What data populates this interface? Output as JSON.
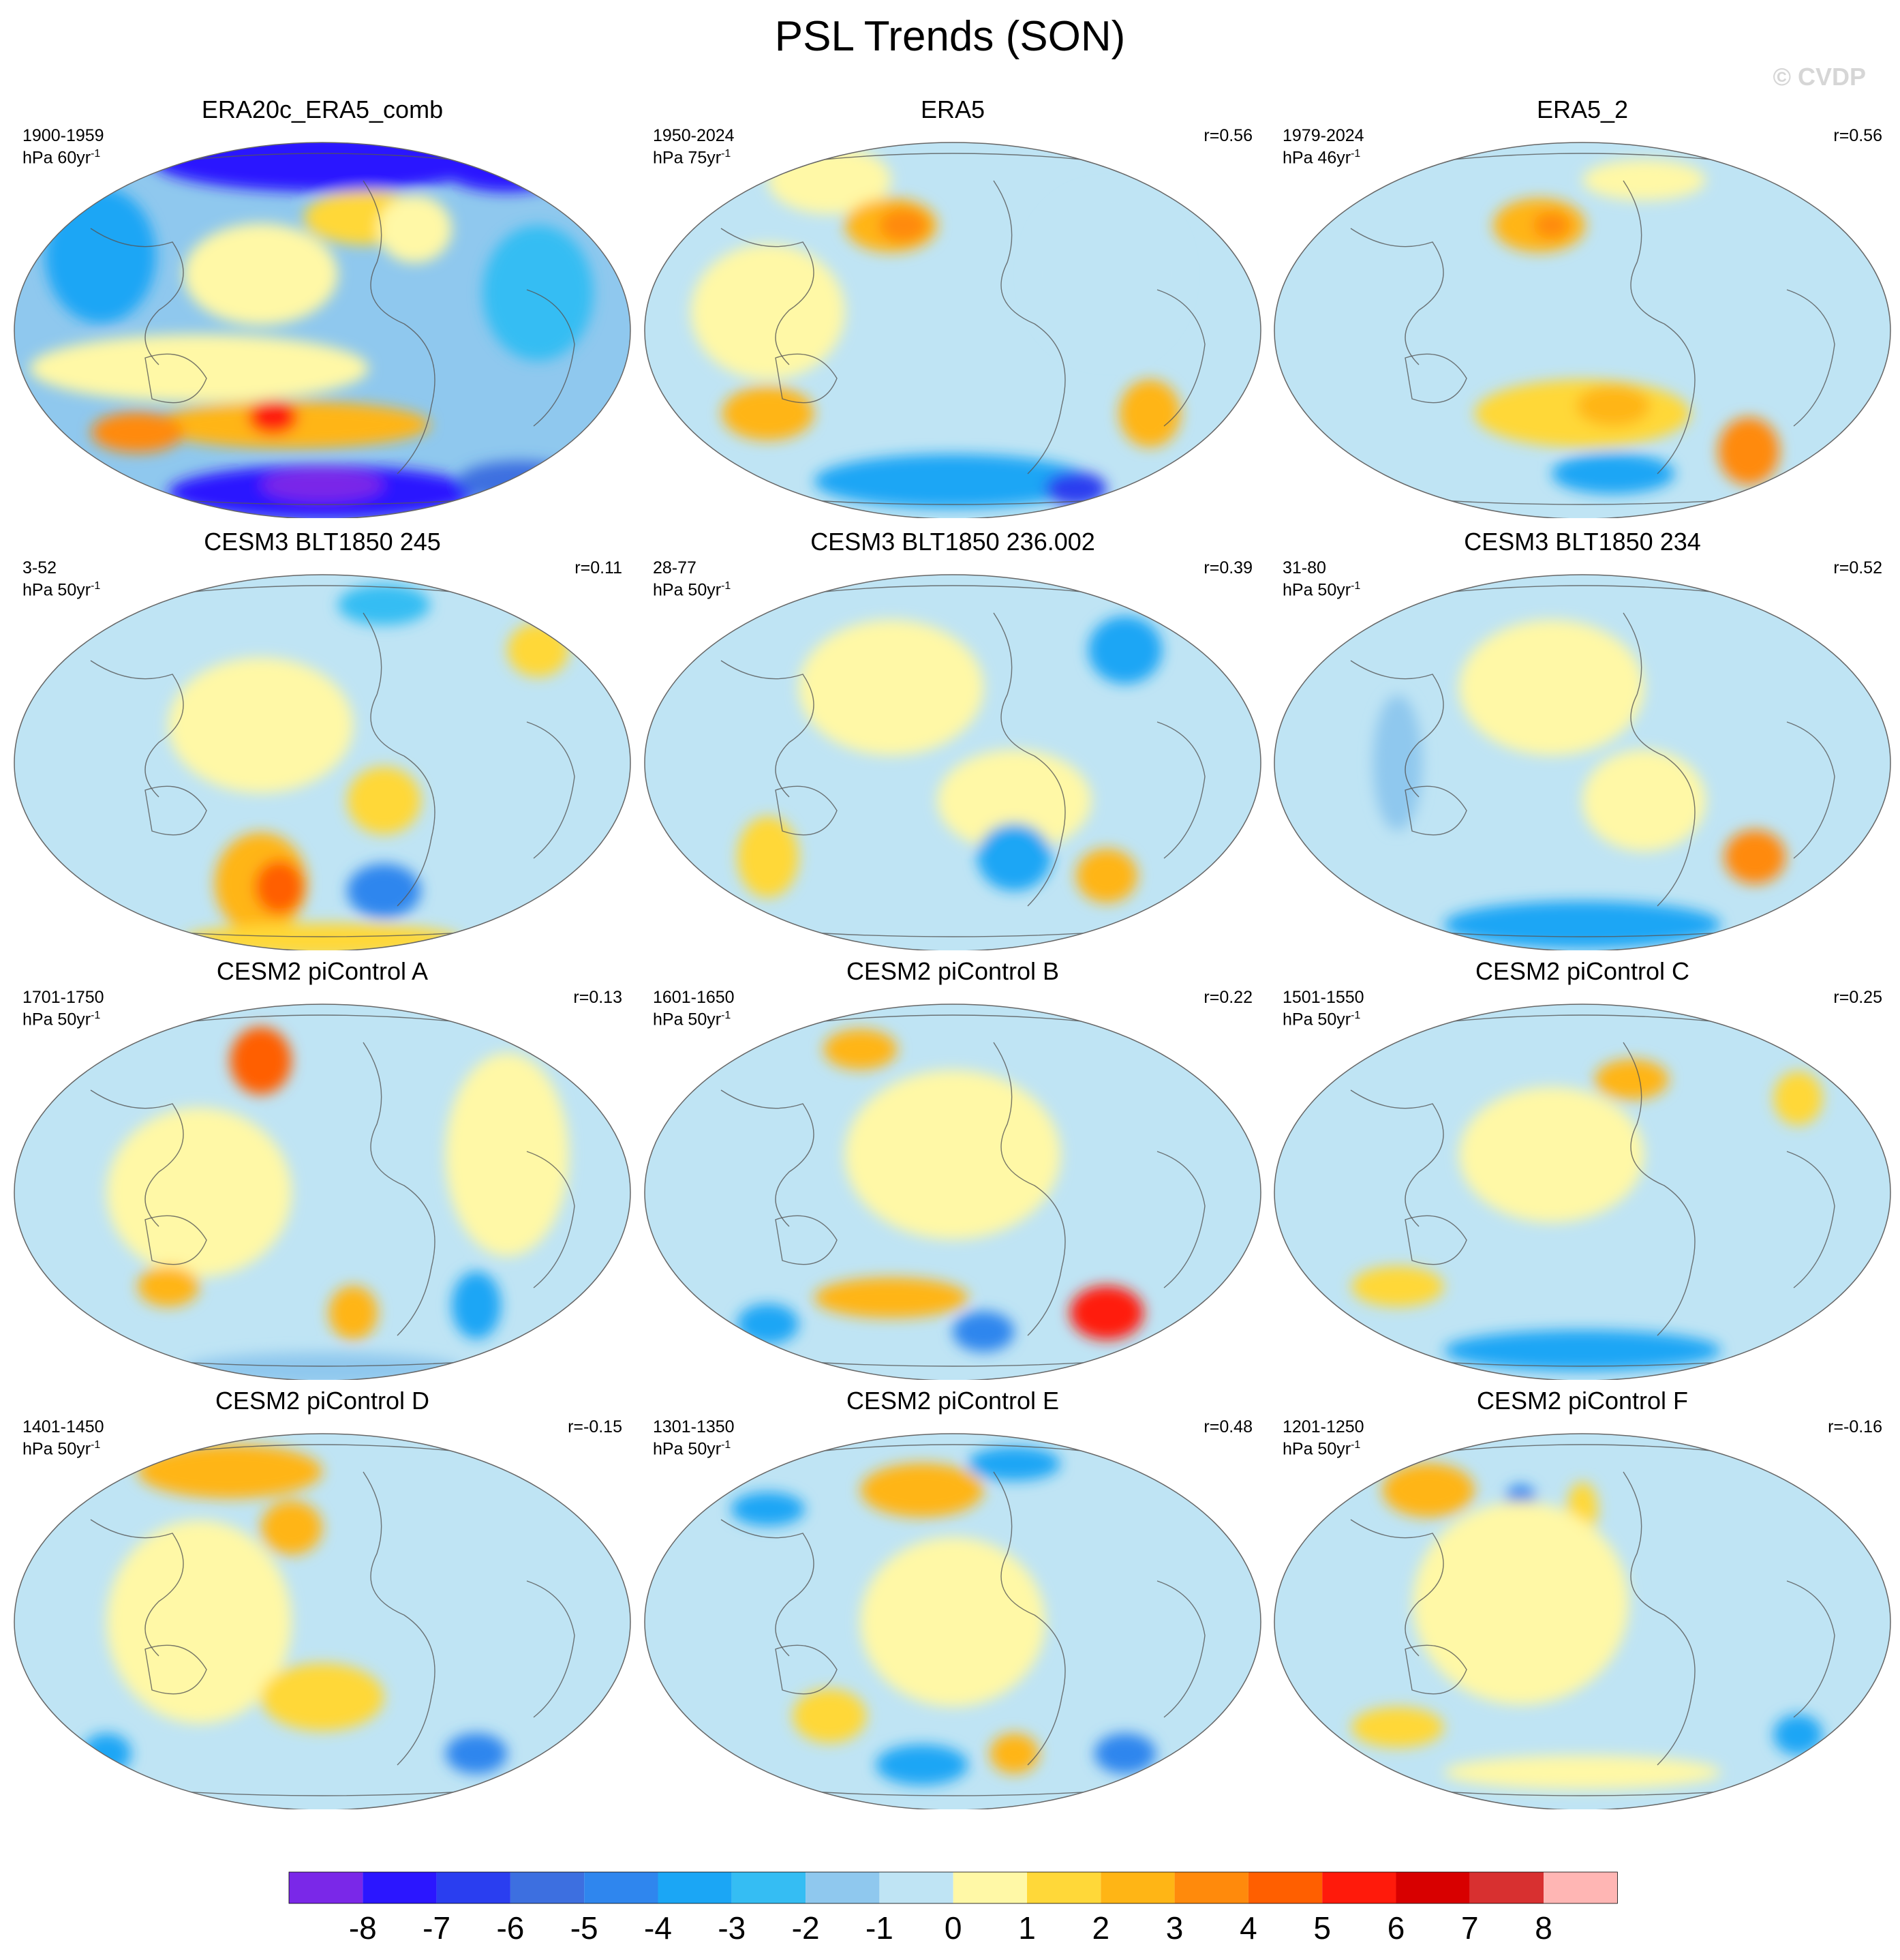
{
  "title": "PSL Trends (SON)",
  "watermark": "© CVDP",
  "colors": {
    "palette": [
      "#7a28e8",
      "#2b16ff",
      "#2a3ef0",
      "#3d6fe0",
      "#2f86ee",
      "#1ba6f5",
      "#35bdf3",
      "#8fc8ee",
      "#bfe4f4",
      "#fff8a6",
      "#ffd839",
      "#ffb515",
      "#ff8a0c",
      "#ff5f00",
      "#ff1a0b",
      "#d80000",
      "#d83030",
      "#ffb6b4"
    ],
    "coast": "#555555"
  },
  "panels": [
    {
      "id": "era20c",
      "title": "ERA20c_ERA5_comb",
      "period": "1900-1959",
      "units_base": "hPa 60yr",
      "units_exp": "-1",
      "corr": "",
      "base": 7,
      "blobs": [
        [
          0.5,
          0.05,
          0.55,
          0.09,
          1
        ],
        [
          0.8,
          0.06,
          0.22,
          0.08,
          1
        ],
        [
          0.14,
          0.3,
          0.18,
          0.2,
          5
        ],
        [
          0.85,
          0.4,
          0.18,
          0.2,
          6
        ],
        [
          0.4,
          0.35,
          0.25,
          0.15,
          9
        ],
        [
          0.57,
          0.2,
          0.2,
          0.08,
          10
        ],
        [
          0.65,
          0.23,
          0.12,
          0.1,
          9
        ],
        [
          0.3,
          0.6,
          0.55,
          0.1,
          9
        ],
        [
          0.45,
          0.75,
          0.45,
          0.07,
          11
        ],
        [
          0.2,
          0.77,
          0.15,
          0.06,
          12
        ],
        [
          0.42,
          0.73,
          0.08,
          0.05,
          14
        ],
        [
          0.5,
          0.93,
          0.5,
          0.08,
          1
        ],
        [
          0.5,
          0.91,
          0.2,
          0.05,
          0
        ],
        [
          0.82,
          0.9,
          0.2,
          0.06,
          3
        ]
      ]
    },
    {
      "id": "era5",
      "title": "ERA5",
      "period": "1950-2024",
      "units_base": "hPa 75yr",
      "units_exp": "-1",
      "corr": "r=0.56",
      "base": 8,
      "blobs": [
        [
          0.3,
          0.1,
          0.2,
          0.1,
          9
        ],
        [
          0.4,
          0.22,
          0.15,
          0.08,
          11
        ],
        [
          0.42,
          0.22,
          0.08,
          0.05,
          12
        ],
        [
          0.2,
          0.45,
          0.25,
          0.2,
          9
        ],
        [
          0.75,
          0.35,
          0.25,
          0.25,
          8
        ],
        [
          0.2,
          0.72,
          0.15,
          0.08,
          11
        ],
        [
          0.82,
          0.72,
          0.1,
          0.1,
          11
        ],
        [
          0.5,
          0.9,
          0.45,
          0.08,
          5
        ],
        [
          0.7,
          0.92,
          0.1,
          0.05,
          2
        ]
      ]
    },
    {
      "id": "era5_2",
      "title": "ERA5_2",
      "period": "1979-2024",
      "units_base": "hPa 46yr",
      "units_exp": "-1",
      "corr": "r=0.56",
      "base": 8,
      "blobs": [
        [
          0.43,
          0.22,
          0.15,
          0.08,
          11
        ],
        [
          0.45,
          0.22,
          0.06,
          0.04,
          12
        ],
        [
          0.6,
          0.1,
          0.2,
          0.06,
          9
        ],
        [
          0.5,
          0.72,
          0.35,
          0.1,
          10
        ],
        [
          0.55,
          0.7,
          0.12,
          0.06,
          11
        ],
        [
          0.77,
          0.82,
          0.1,
          0.1,
          12
        ],
        [
          0.55,
          0.88,
          0.2,
          0.06,
          5
        ]
      ]
    },
    {
      "id": "cesm3_245",
      "title": "CESM3 BLT1850 245",
      "period": "3-52",
      "units_base": "hPa 50yr",
      "units_exp": "-1",
      "corr": "r=0.11",
      "base": 8,
      "blobs": [
        [
          0.6,
          0.08,
          0.15,
          0.06,
          6
        ],
        [
          0.4,
          0.4,
          0.3,
          0.2,
          9
        ],
        [
          0.6,
          0.6,
          0.12,
          0.1,
          10
        ],
        [
          0.4,
          0.82,
          0.15,
          0.15,
          11
        ],
        [
          0.43,
          0.83,
          0.08,
          0.08,
          13
        ],
        [
          0.6,
          0.84,
          0.12,
          0.08,
          4
        ],
        [
          0.85,
          0.2,
          0.1,
          0.08,
          10
        ],
        [
          0.5,
          0.97,
          0.45,
          0.05,
          10
        ]
      ]
    },
    {
      "id": "cesm3_236",
      "title": "CESM3 BLT1850 236.002",
      "period": "28-77",
      "units_base": "hPa 50yr",
      "units_exp": "-1",
      "corr": "r=0.39",
      "base": 8,
      "blobs": [
        [
          0.4,
          0.3,
          0.3,
          0.2,
          9
        ],
        [
          0.6,
          0.6,
          0.25,
          0.15,
          9
        ],
        [
          0.2,
          0.75,
          0.1,
          0.12,
          10
        ],
        [
          0.6,
          0.75,
          0.12,
          0.1,
          5
        ],
        [
          0.75,
          0.8,
          0.1,
          0.08,
          11
        ],
        [
          0.78,
          0.2,
          0.12,
          0.1,
          5
        ]
      ]
    },
    {
      "id": "cesm3_234",
      "title": "CESM3 BLT1850 234",
      "period": "31-80",
      "units_base": "hPa 50yr",
      "units_exp": "-1",
      "corr": "r=0.52",
      "base": 8,
      "blobs": [
        [
          0.45,
          0.3,
          0.3,
          0.2,
          9
        ],
        [
          0.6,
          0.6,
          0.2,
          0.15,
          9
        ],
        [
          0.78,
          0.75,
          0.1,
          0.08,
          12
        ],
        [
          0.5,
          0.93,
          0.45,
          0.07,
          5
        ],
        [
          0.2,
          0.5,
          0.08,
          0.2,
          7
        ]
      ]
    },
    {
      "id": "cesm2_a",
      "title": "CESM2 piControl A",
      "period": "1701-1750",
      "units_base": "hPa 50yr",
      "units_exp": "-1",
      "corr": "r=0.13",
      "base": 8,
      "blobs": [
        [
          0.4,
          0.15,
          0.1,
          0.1,
          13
        ],
        [
          0.3,
          0.5,
          0.3,
          0.25,
          9
        ],
        [
          0.8,
          0.4,
          0.2,
          0.3,
          9
        ],
        [
          0.25,
          0.75,
          0.1,
          0.06,
          11
        ],
        [
          0.55,
          0.82,
          0.08,
          0.08,
          11
        ],
        [
          0.75,
          0.8,
          0.08,
          0.1,
          5
        ],
        [
          0.5,
          0.97,
          0.45,
          0.05,
          7
        ]
      ]
    },
    {
      "id": "cesm2_b",
      "title": "CESM2 piControl B",
      "period": "1601-1650",
      "units_base": "hPa 50yr",
      "units_exp": "-1",
      "corr": "r=0.22",
      "base": 8,
      "blobs": [
        [
          0.35,
          0.12,
          0.12,
          0.06,
          11
        ],
        [
          0.5,
          0.4,
          0.35,
          0.25,
          9
        ],
        [
          0.4,
          0.78,
          0.25,
          0.06,
          11
        ],
        [
          0.75,
          0.82,
          0.12,
          0.08,
          14
        ],
        [
          0.2,
          0.85,
          0.1,
          0.06,
          5
        ],
        [
          0.55,
          0.87,
          0.1,
          0.06,
          4
        ]
      ]
    },
    {
      "id": "cesm2_c",
      "title": "CESM2 piControl C",
      "period": "1501-1550",
      "units_base": "hPa 50yr",
      "units_exp": "-1",
      "corr": "r=0.25",
      "base": 8,
      "blobs": [
        [
          0.58,
          0.2,
          0.12,
          0.06,
          11
        ],
        [
          0.45,
          0.4,
          0.3,
          0.2,
          9
        ],
        [
          0.2,
          0.75,
          0.15,
          0.06,
          10
        ],
        [
          0.5,
          0.92,
          0.45,
          0.06,
          5
        ],
        [
          0.85,
          0.25,
          0.08,
          0.08,
          10
        ]
      ]
    },
    {
      "id": "cesm2_d",
      "title": "CESM2 piControl D",
      "period": "1401-1450",
      "units_base": "hPa 50yr",
      "units_exp": "-1",
      "corr": "r=-0.15",
      "base": 8,
      "blobs": [
        [
          0.35,
          0.1,
          0.3,
          0.08,
          11
        ],
        [
          0.45,
          0.25,
          0.1,
          0.08,
          11
        ],
        [
          0.3,
          0.5,
          0.3,
          0.3,
          9
        ],
        [
          0.5,
          0.7,
          0.2,
          0.1,
          10
        ],
        [
          0.15,
          0.85,
          0.08,
          0.06,
          5
        ],
        [
          0.75,
          0.85,
          0.1,
          0.06,
          4
        ]
      ]
    },
    {
      "id": "cesm2_e",
      "title": "CESM2 piControl E",
      "period": "1301-1350",
      "units_base": "hPa 50yr",
      "units_exp": "-1",
      "corr": "r=0.48",
      "base": 8,
      "blobs": [
        [
          0.45,
          0.15,
          0.2,
          0.08,
          11
        ],
        [
          0.6,
          0.08,
          0.15,
          0.05,
          5
        ],
        [
          0.2,
          0.2,
          0.12,
          0.05,
          5
        ],
        [
          0.5,
          0.5,
          0.3,
          0.25,
          9
        ],
        [
          0.3,
          0.75,
          0.12,
          0.08,
          10
        ],
        [
          0.6,
          0.85,
          0.08,
          0.06,
          11
        ],
        [
          0.45,
          0.88,
          0.15,
          0.06,
          5
        ],
        [
          0.78,
          0.85,
          0.1,
          0.06,
          4
        ]
      ]
    },
    {
      "id": "cesm2_f",
      "title": "CESM2 piControl F",
      "period": "1201-1250",
      "units_base": "hPa 50yr",
      "units_exp": "-1",
      "corr": "r=-0.16",
      "base": 8,
      "blobs": [
        [
          0.25,
          0.15,
          0.15,
          0.08,
          11
        ],
        [
          0.4,
          0.18,
          0.05,
          0.05,
          4
        ],
        [
          0.5,
          0.2,
          0.05,
          0.08,
          10
        ],
        [
          0.4,
          0.45,
          0.35,
          0.3,
          9
        ],
        [
          0.2,
          0.78,
          0.15,
          0.06,
          10
        ],
        [
          0.85,
          0.8,
          0.08,
          0.06,
          5
        ],
        [
          0.5,
          0.9,
          0.45,
          0.05,
          9
        ]
      ]
    }
  ],
  "colorbar": {
    "labels": [
      "-8",
      "-7",
      "-6",
      "-5",
      "-4",
      "-3",
      "-2",
      "-1",
      "0",
      "1",
      "2",
      "3",
      "4",
      "5",
      "6",
      "7",
      "8"
    ]
  }
}
